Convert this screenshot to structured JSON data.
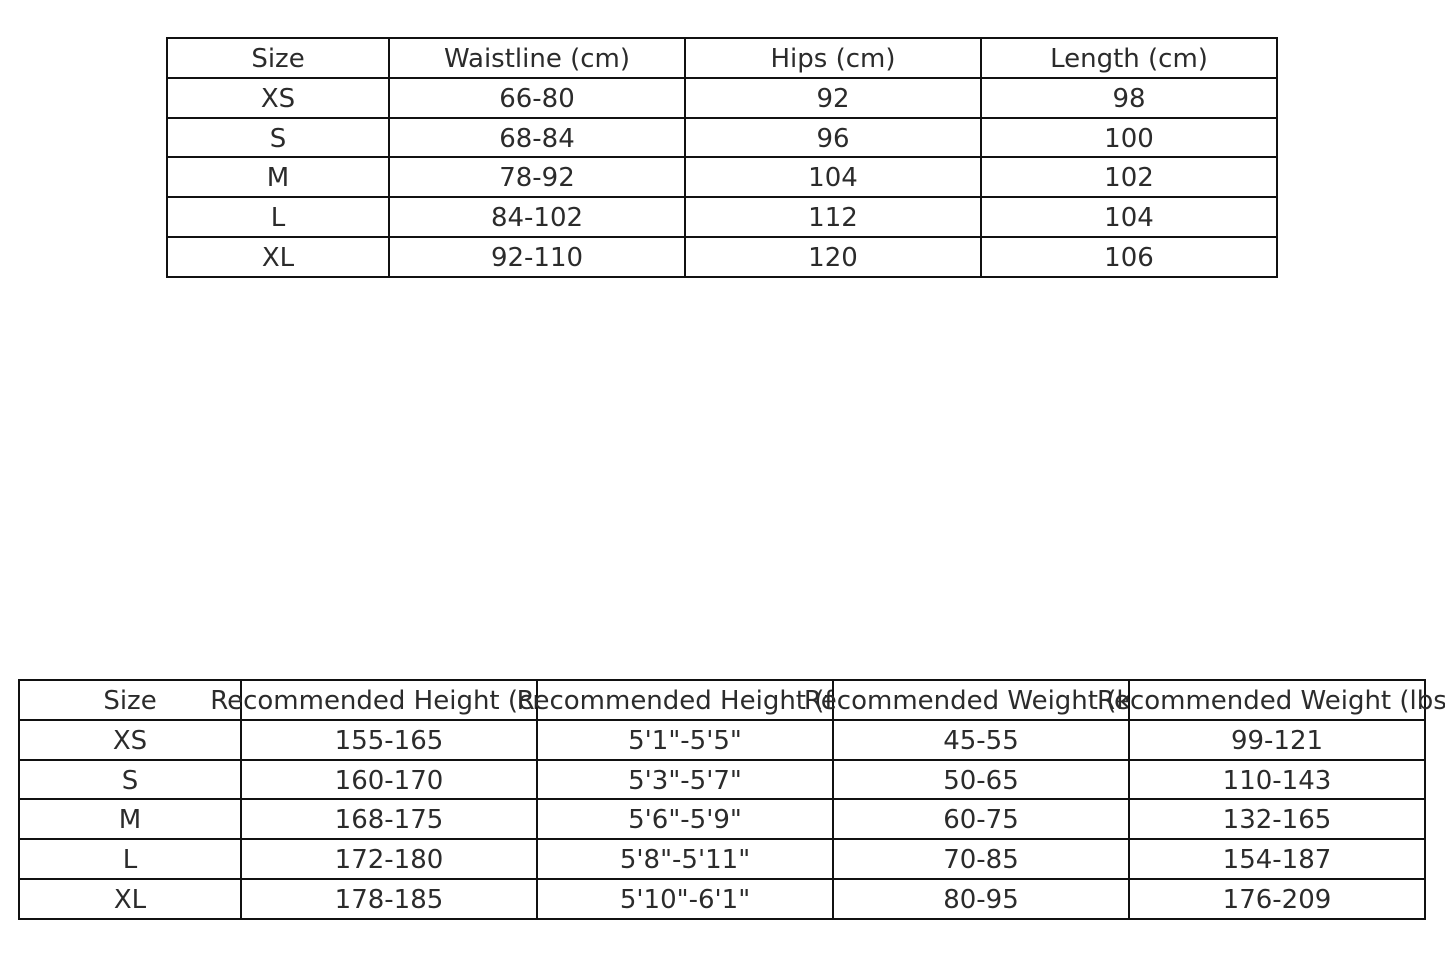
{
  "tables": [
    {
      "name": "measurements-table",
      "headers": [
        "Size",
        "Waistline (cm)",
        "Hips (cm)",
        "Length (cm)"
      ],
      "rows": [
        [
          "XS",
          "66-80",
          "92",
          "98"
        ],
        [
          "S",
          "68-84",
          "96",
          "100"
        ],
        [
          "M",
          "78-92",
          "104",
          "102"
        ],
        [
          "L",
          "84-102",
          "112",
          "104"
        ],
        [
          "XL",
          "92-110",
          "120",
          "106"
        ]
      ]
    },
    {
      "name": "recommendation-table",
      "headers": [
        "Size",
        "Recommended Height (cm)",
        "Recommended Height (ft)",
        "Recommended Weight (kg)",
        "Recommended Weight (lbs)"
      ],
      "rows": [
        [
          "XS",
          "155-165",
          "5'1\"-5'5\"",
          "45-55",
          "99-121"
        ],
        [
          "S",
          "160-170",
          "5'3\"-5'7\"",
          "50-65",
          "110-143"
        ],
        [
          "M",
          "168-175",
          "5'6\"-5'9\"",
          "60-75",
          "132-165"
        ],
        [
          "L",
          "172-180",
          "5'8\"-5'11\"",
          "70-85",
          "154-187"
        ],
        [
          "XL",
          "178-185",
          "5'10\"-6'1\"",
          "80-95",
          "176-209"
        ]
      ]
    }
  ]
}
